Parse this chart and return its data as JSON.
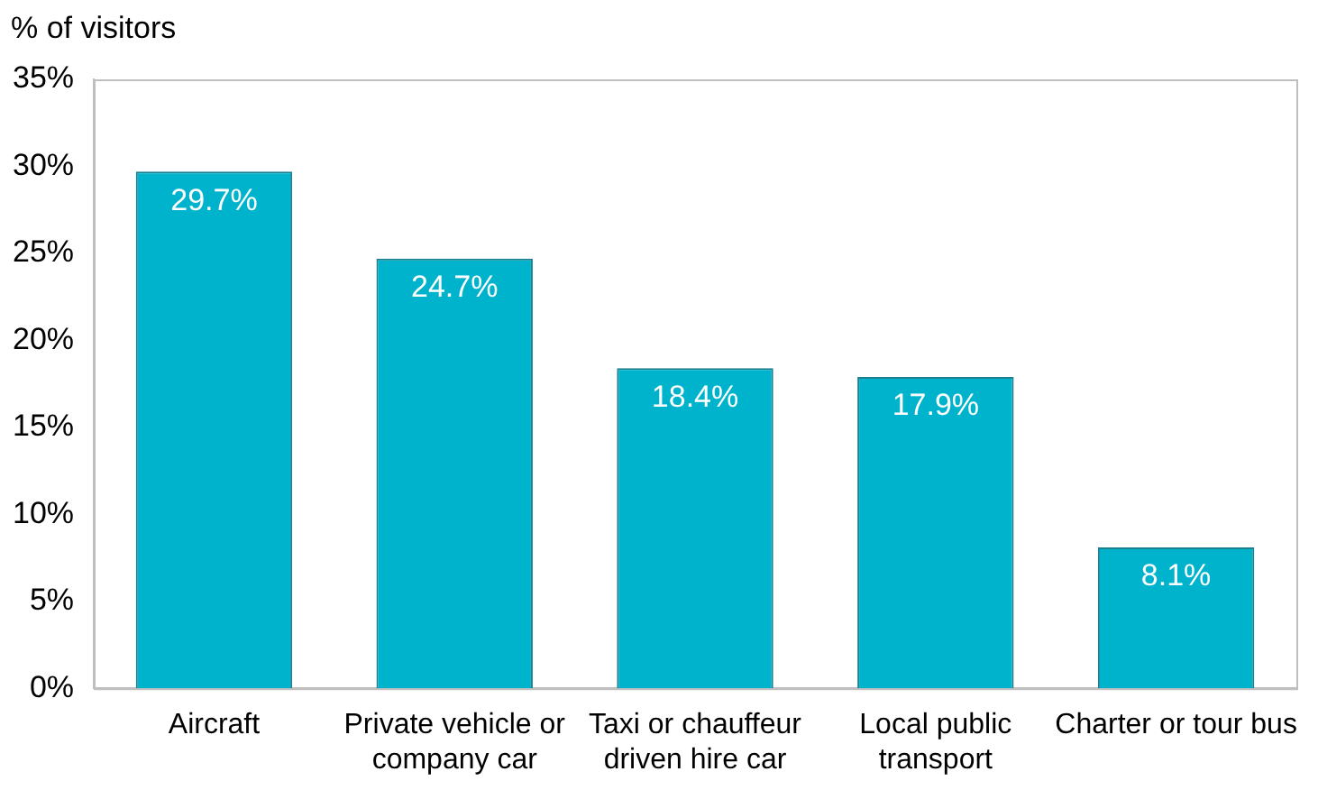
{
  "chart_data": {
    "type": "bar",
    "ylabel": "% of visitors",
    "categories": [
      "Aircraft",
      "Private vehicle or company car",
      "Taxi or chauffeur driven hire car",
      "Local public transport",
      "Charter or tour bus"
    ],
    "values": [
      29.7,
      24.7,
      18.4,
      17.9,
      8.1
    ],
    "value_labels": [
      "29.7%",
      "24.7%",
      "18.4%",
      "17.9%",
      "8.1%"
    ],
    "color": "#00b3cc",
    "ylim": [
      0,
      35
    ],
    "yticks": [
      {
        "value": 0,
        "label": "0%"
      },
      {
        "value": 5,
        "label": "5%"
      },
      {
        "value": 10,
        "label": "10%"
      },
      {
        "value": 15,
        "label": "15%"
      },
      {
        "value": 20,
        "label": "20%"
      },
      {
        "value": 25,
        "label": "25%"
      },
      {
        "value": 30,
        "label": "30%"
      },
      {
        "value": 35,
        "label": "35%"
      }
    ],
    "grid": false,
    "legend": false
  }
}
